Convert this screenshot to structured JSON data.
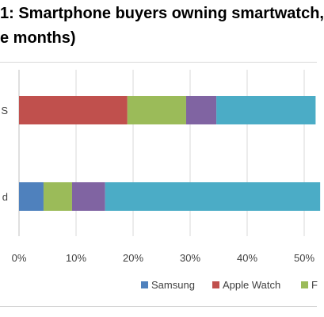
{
  "chart_data": {
    "type": "bar",
    "orientation": "horizontal",
    "stacked": true,
    "title_lines": [
      "1: Smartphone buyers owning smartwatch,",
      "e months)"
    ],
    "categories": [
      "S",
      "d"
    ],
    "series": [
      {
        "name": "Samsung",
        "color": "#4f81bd",
        "values": [
          0,
          4.3
        ]
      },
      {
        "name": "Apple Watch",
        "color": "#c0504d",
        "values": [
          19.0,
          0
        ]
      },
      {
        "name": "F",
        "color": "#9bbb59",
        "values": [
          10.3,
          5.0
        ]
      },
      {
        "name": "",
        "color": "#8064a2",
        "values": [
          5.3,
          5.8
        ]
      },
      {
        "name": "",
        "color": "#4bacc6",
        "values": [
          17.4,
          37.7
        ]
      }
    ],
    "x_ticks": [
      "0%",
      "10%",
      "20%",
      "30%",
      "40%",
      "50%"
    ],
    "xlim": [
      0,
      52
    ],
    "grid": true,
    "legend_position": "bottom"
  }
}
